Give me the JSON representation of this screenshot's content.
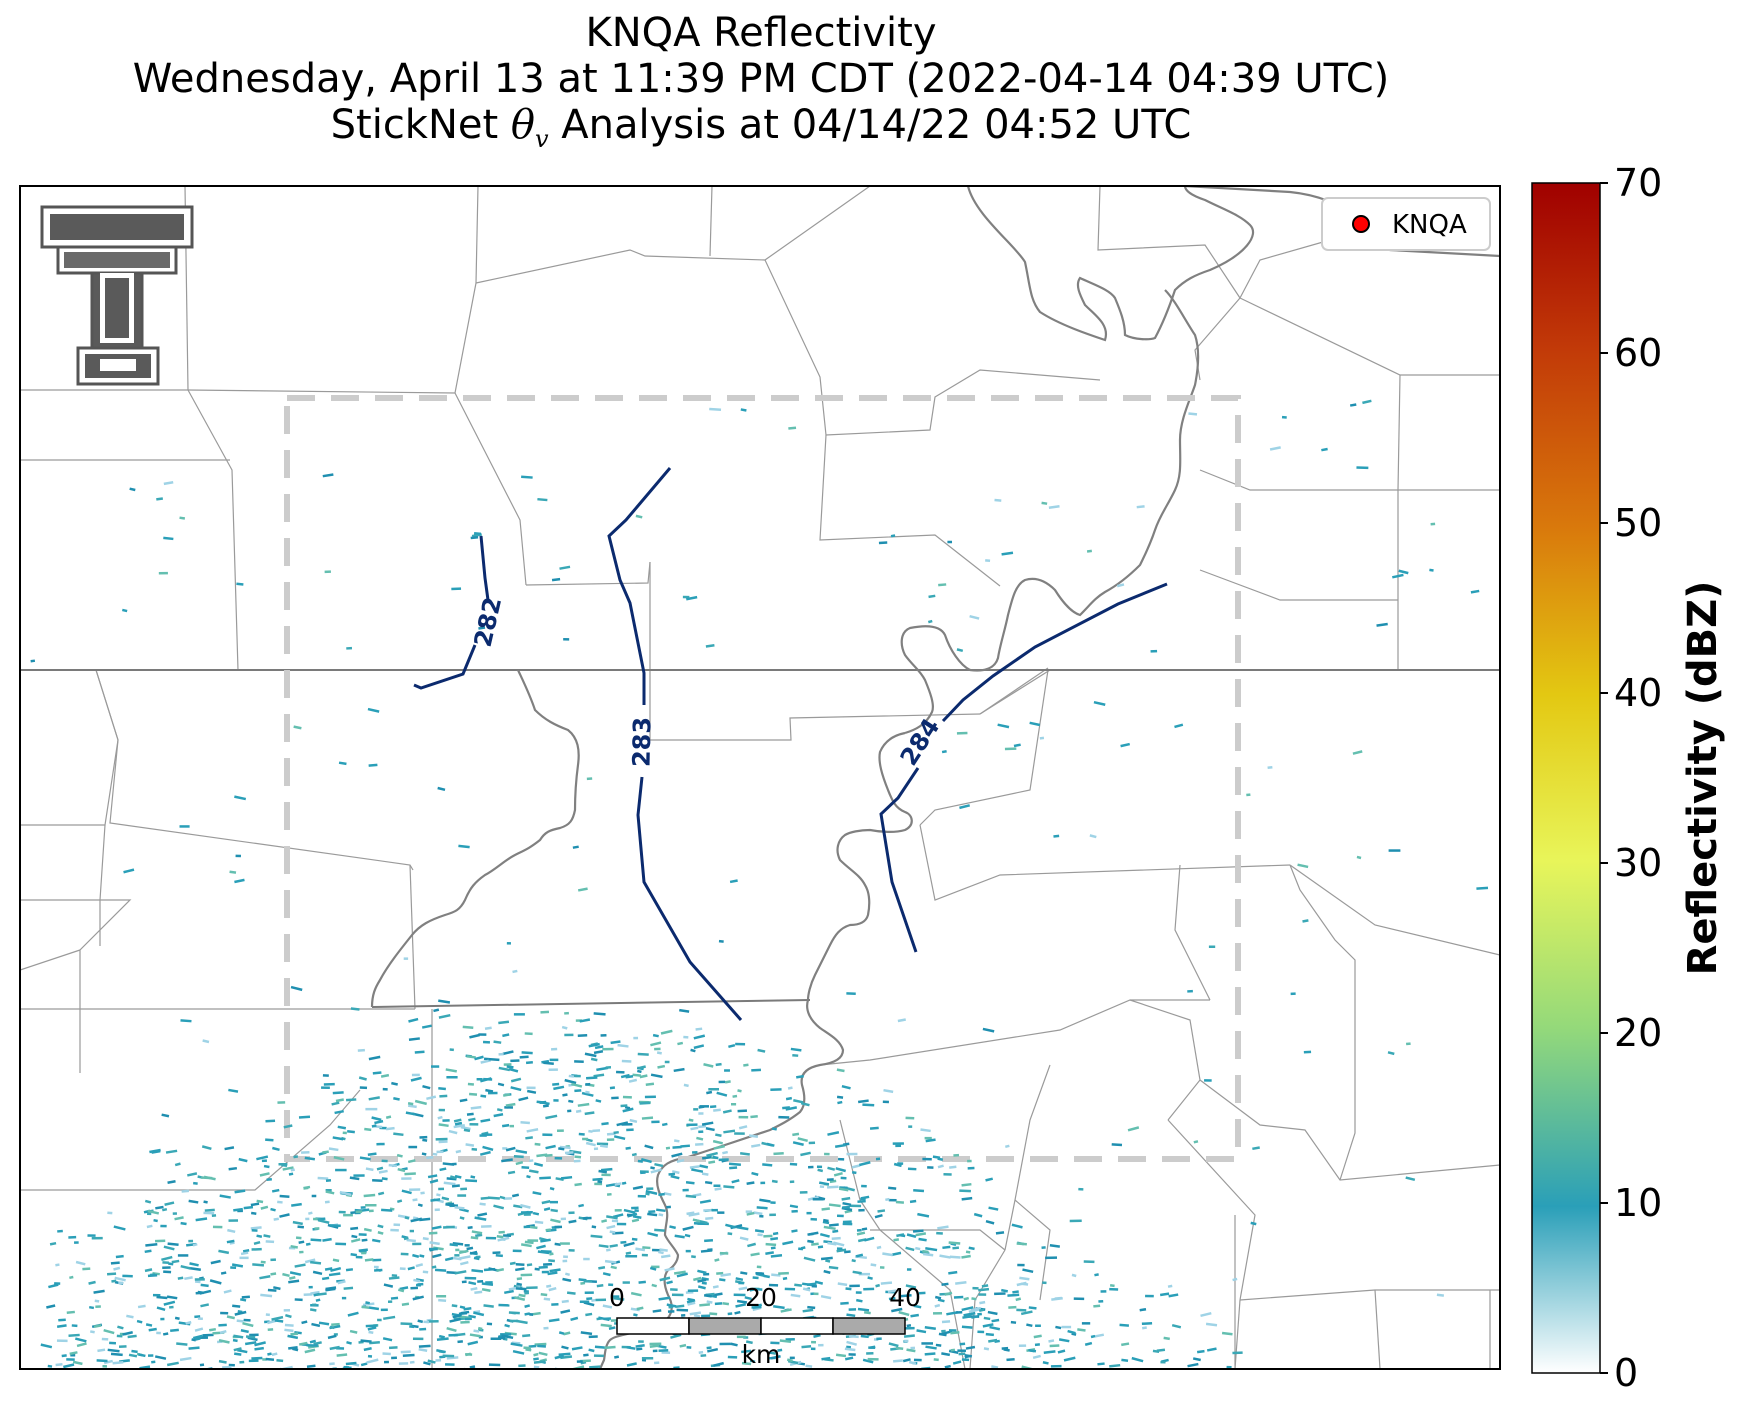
{
  "title": {
    "line1": "KNQA Reflectivity",
    "line2": "Wednesday, April 13 at 11:39 PM CDT (2022-04-14 04:39 UTC)",
    "line3_prefix": "StickNet ",
    "line3_symbol": "θ",
    "line3_subscript": "v",
    "line3_suffix": " Analysis at 04/14/22 04:52 UTC"
  },
  "legend": {
    "label": "KNQA",
    "marker_color": "#ff0000"
  },
  "colorbar": {
    "label": "Reflectivity (dBZ)",
    "ticks": [
      "0",
      "10",
      "20",
      "30",
      "40",
      "50",
      "60",
      "70"
    ],
    "min": 0,
    "max": 70,
    "colors": [
      "#ffffff",
      "#2a9fb8",
      "#94d97a",
      "#e8f55a",
      "#e3c812",
      "#d9790c",
      "#c23a08",
      "#a00000"
    ]
  },
  "contours": [
    {
      "label": "282",
      "value": 282
    },
    {
      "label": "283",
      "value": 283
    },
    {
      "label": "284",
      "value": 284
    }
  ],
  "scale_bar": {
    "ticks": [
      "0",
      "20",
      "40"
    ],
    "unit": "km"
  },
  "colors": {
    "contour": "#0b2a6e",
    "river": "#808080",
    "state_border": "#7a7a7a",
    "county_border": "#9a9a9a",
    "analysis_box": "#cccccc",
    "echo": "#2a9fb8"
  },
  "icons": {
    "logo": "texas-tech-double-t-logo"
  }
}
